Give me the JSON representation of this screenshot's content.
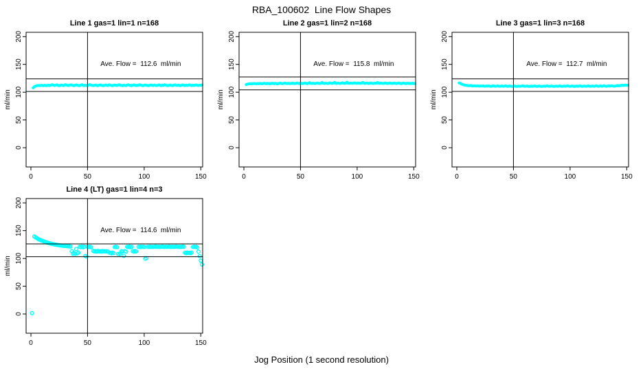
{
  "page": {
    "title": "RBA_100602  Line Flow Shapes",
    "xlabel": "Jog Position (1 second resolution)",
    "ylabel": "ml/min",
    "background": "#FFFFFF",
    "point_color": "#00FFFF",
    "line_color": "#000000"
  },
  "chart_data": [
    {
      "type": "scatter",
      "title": "Line 1 gas=1 lin=1 n=168",
      "annotation": "Ave. Flow =  112.6  ml/min",
      "ave_flow": 112.6,
      "n": 168,
      "marker": "filled",
      "point_color": "#00FFFF",
      "x_ticks": [
        0,
        50,
        100,
        150
      ],
      "y_ticks": [
        0,
        50,
        100,
        150,
        200
      ],
      "xlim": [
        -4.3,
        151.7
      ],
      "ylim": [
        -34.6,
        207.8
      ],
      "vline_x": 50,
      "hlines": [
        123.9,
        101.3
      ],
      "grid": false,
      "x_start": 2,
      "x_step": 1,
      "y": [
        107.8,
        109.6,
        110.8,
        111.4,
        111.9,
        112.1,
        111.7,
        112.3,
        112.0,
        111.6,
        112.4,
        112.1,
        111.8,
        112.6,
        112.2,
        111.9,
        113.1,
        113.6,
        112.4,
        112.0,
        112.7,
        113.2,
        112.1,
        111.8,
        112.5,
        112.9,
        112.2,
        111.7,
        113.4,
        113.0,
        112.3,
        111.9,
        112.6,
        113.2,
        112.8,
        112.1,
        111.7,
        112.4,
        113.0,
        112.5,
        112.0,
        111.8,
        112.7,
        113.3,
        112.2,
        111.9,
        112.5,
        112.1,
        111.8,
        112.9,
        113.5,
        112.6,
        112.2,
        111.9,
        112.4,
        112.8,
        112.3,
        111.8,
        112.6,
        113.1,
        112.4,
        112.0,
        111.7,
        112.5,
        112.9,
        112.2,
        111.9,
        113.2,
        112.6,
        112.1,
        111.8,
        112.4,
        112.9,
        112.3,
        112.0,
        112.7,
        113.3,
        112.5,
        112.1,
        111.8,
        112.6,
        112.2,
        111.9,
        112.8,
        113.2,
        112.4,
        112.0,
        111.7,
        112.5,
        113.0,
        112.3,
        111.9,
        112.6,
        112.2,
        113.4,
        112.8,
        112.1,
        111.8,
        112.5,
        112.9,
        112.3,
        112.0,
        111.7,
        112.6,
        113.1,
        112.4,
        112.0,
        112.8,
        112.2,
        111.9,
        112.5,
        113.0,
        112.3,
        111.8,
        112.7,
        112.1,
        113.3,
        112.6,
        112.0,
        111.8,
        112.4,
        112.9,
        112.2,
        111.9,
        112.6,
        113.1,
        112.3,
        112.0,
        112.7,
        112.2,
        111.8,
        112.5,
        113.0,
        112.4,
        111.9,
        112.6,
        112.1,
        112.8,
        113.2,
        112.3,
        111.9,
        112.5,
        112.0,
        112.7,
        113.1,
        112.4,
        112.0,
        112.6,
        112.2,
        112.9
      ]
    },
    {
      "type": "scatter",
      "title": "Line 2 gas=1 lin=2 n=168",
      "annotation": "Ave. Flow =  115.8  ml/min",
      "ave_flow": 115.8,
      "n": 168,
      "marker": "filled",
      "point_color": "#00FFFF",
      "x_ticks": [
        0,
        50,
        100,
        150
      ],
      "y_ticks": [
        0,
        50,
        100,
        150,
        200
      ],
      "xlim": [
        -4.3,
        151.7
      ],
      "ylim": [
        -34.6,
        207.8
      ],
      "vline_x": 50,
      "hlines": [
        127.4,
        104.2
      ],
      "grid": false,
      "x_start": 2,
      "x_step": 1,
      "y": [
        113.6,
        114.4,
        114.9,
        115.2,
        115.0,
        115.4,
        115.1,
        115.6,
        115.3,
        114.9,
        115.5,
        115.2,
        115.8,
        115.4,
        115.1,
        115.7,
        116.0,
        115.5,
        115.2,
        115.8,
        115.4,
        115.1,
        115.6,
        116.1,
        115.7,
        115.3,
        115.9,
        115.5,
        115.2,
        115.8,
        116.2,
        115.6,
        115.3,
        115.9,
        116.4,
        115.8,
        115.4,
        116.0,
        115.6,
        115.3,
        115.9,
        116.3,
        115.7,
        115.4,
        116.0,
        116.5,
        115.8,
        115.5,
        116.1,
        115.7,
        115.4,
        116.0,
        116.4,
        115.8,
        115.5,
        116.1,
        117.3,
        115.9,
        115.6,
        116.2,
        115.8,
        115.5,
        116.1,
        116.5,
        115.9,
        115.6,
        116.2,
        117.6,
        116.0,
        115.7,
        116.3,
        115.9,
        115.6,
        116.2,
        116.6,
        116.0,
        115.7,
        116.3,
        117.8,
        116.1,
        115.8,
        116.4,
        116.0,
        115.7,
        116.3,
        116.7,
        116.1,
        115.8,
        116.4,
        117.9,
        116.2,
        115.9,
        116.5,
        116.1,
        115.8,
        116.4,
        116.8,
        116.2,
        115.9,
        116.5,
        116.1,
        115.8,
        116.4,
        117.5,
        116.1,
        115.8,
        116.3,
        116.0,
        115.7,
        116.2,
        116.6,
        116.0,
        115.7,
        116.2,
        115.9,
        116.4,
        117.4,
        116.1,
        115.8,
        116.3,
        116.0,
        115.7,
        116.2,
        116.6,
        115.9,
        115.7,
        116.1,
        116.5,
        115.9,
        115.6,
        116.1,
        116.4,
        115.8,
        115.6,
        116.0,
        116.4,
        115.8,
        115.5,
        116.0,
        116.3,
        115.8,
        115.5,
        115.9,
        116.2,
        115.7,
        115.4,
        115.9,
        116.2,
        115.7,
        115.5
      ]
    },
    {
      "type": "scatter",
      "title": "Line 3 gas=1 lin=3 n=168",
      "annotation": "Ave. Flow =  112.7  ml/min",
      "ave_flow": 112.7,
      "n": 168,
      "marker": "filled",
      "point_color": "#00FFFF",
      "x_ticks": [
        0,
        50,
        100,
        150
      ],
      "y_ticks": [
        0,
        50,
        100,
        150,
        200
      ],
      "xlim": [
        -4.3,
        151.7
      ],
      "ylim": [
        -34.6,
        207.8
      ],
      "vline_x": 50,
      "hlines": [
        124.0,
        101.4
      ],
      "grid": false,
      "x_start": 2,
      "x_step": 1,
      "y": [
        116.6,
        116.0,
        114.8,
        113.9,
        113.2,
        112.7,
        112.3,
        112.0,
        111.8,
        111.6,
        111.9,
        111.5,
        111.2,
        111.6,
        111.3,
        111.0,
        111.4,
        111.1,
        110.8,
        111.2,
        110.9,
        111.3,
        111.0,
        110.7,
        111.1,
        110.8,
        111.2,
        110.9,
        110.6,
        111.0,
        111.4,
        110.8,
        110.5,
        110.9,
        111.3,
        110.7,
        110.4,
        110.9,
        111.2,
        110.6,
        110.9,
        111.3,
        110.7,
        110.4,
        110.8,
        111.1,
        110.6,
        110.3,
        110.8,
        111.2,
        110.6,
        110.3,
        110.7,
        111.0,
        110.5,
        110.9,
        111.3,
        110.7,
        110.4,
        110.8,
        111.1,
        110.6,
        110.3,
        110.7,
        111.0,
        110.5,
        110.8,
        111.2,
        110.6,
        110.4,
        110.8,
        111.1,
        110.5,
        110.3,
        110.7,
        111.0,
        110.6,
        110.9,
        111.3,
        110.7,
        110.4,
        110.8,
        111.1,
        110.6,
        110.3,
        110.7,
        111.0,
        110.5,
        110.9,
        111.2,
        110.6,
        110.4,
        110.8,
        111.1,
        110.5,
        110.9,
        111.3,
        110.7,
        110.4,
        110.8,
        111.2,
        110.6,
        110.3,
        110.8,
        111.1,
        110.5,
        110.9,
        111.2,
        110.7,
        110.4,
        110.8,
        111.1,
        110.6,
        111.0,
        111.3,
        110.7,
        110.5,
        110.9,
        111.2,
        110.6,
        111.0,
        111.4,
        110.8,
        110.5,
        110.9,
        111.3,
        110.7,
        111.1,
        111.5,
        110.9,
        110.6,
        111.0,
        111.4,
        110.8,
        111.2,
        111.6,
        111.0,
        110.7,
        111.1,
        111.5,
        111.9,
        111.3,
        111.7,
        112.1,
        112.5,
        112.0,
        112.4,
        112.8,
        112.3,
        112.6
      ]
    },
    {
      "type": "scatter",
      "title": "Line 4 (LT) gas=1 lin=4 n=3",
      "annotation": "Ave. Flow =  114.6  ml/min",
      "ave_flow": 114.6,
      "n": 3,
      "marker": "open",
      "point_color": "#00FFFF",
      "x_ticks": [
        0,
        50,
        100,
        150
      ],
      "y_ticks": [
        0,
        50,
        100,
        150,
        200
      ],
      "xlim": [
        -4.3,
        151.7
      ],
      "ylim": [
        -34.6,
        207.8
      ],
      "vline_x": 50,
      "hlines": [
        126.1,
        103.1
      ],
      "grid": false,
      "points": [
        [
          1,
          1.5
        ],
        [
          3,
          139.5
        ],
        [
          4,
          138.2
        ],
        [
          5,
          136.8
        ],
        [
          6,
          135.6
        ],
        [
          7,
          134.5
        ],
        [
          8,
          133.5
        ],
        [
          9,
          132.6
        ],
        [
          10,
          131.8
        ],
        [
          11,
          131.0
        ],
        [
          12,
          130.2
        ],
        [
          13,
          129.5
        ],
        [
          14,
          128.8
        ],
        [
          15,
          128.2
        ],
        [
          16,
          127.6
        ],
        [
          17,
          127.0
        ],
        [
          18,
          126.5
        ],
        [
          19,
          126.0
        ],
        [
          20,
          125.5
        ],
        [
          21,
          125.1
        ],
        [
          22,
          124.7
        ],
        [
          23,
          124.3
        ],
        [
          24,
          124.0
        ],
        [
          25,
          123.7
        ],
        [
          26,
          123.4
        ],
        [
          27,
          123.1
        ],
        [
          28,
          122.8
        ],
        [
          29,
          122.6
        ],
        [
          30,
          122.4
        ],
        [
          31,
          122.2
        ],
        [
          32,
          122.0
        ],
        [
          33,
          121.8
        ],
        [
          34,
          121.7
        ],
        [
          35,
          121.5
        ],
        [
          36,
          113.0
        ],
        [
          37,
          108.5
        ],
        [
          38,
          110.0
        ],
        [
          39,
          108.0
        ],
        [
          40,
          117.0
        ],
        [
          41,
          109.0
        ],
        [
          42,
          110.5
        ],
        [
          43,
          121.0
        ],
        [
          44,
          120.4
        ],
        [
          45,
          121.3
        ],
        [
          46,
          120.0
        ],
        [
          47,
          121.0
        ],
        [
          48,
          104.5
        ],
        [
          49,
          103.5
        ],
        [
          50,
          121.0
        ],
        [
          51,
          120.4
        ],
        [
          52,
          121.2
        ],
        [
          53,
          120.2
        ],
        [
          55,
          113.5
        ],
        [
          56,
          112.6
        ],
        [
          57,
          113.2
        ],
        [
          58,
          112.2
        ],
        [
          59,
          113.6
        ],
        [
          60,
          112.6
        ],
        [
          61,
          113.1
        ],
        [
          62,
          112.1
        ],
        [
          63,
          113.4
        ],
        [
          64,
          112.5
        ],
        [
          65,
          113.0
        ],
        [
          66,
          112.4
        ],
        [
          67,
          113.0
        ],
        [
          68,
          112.2
        ],
        [
          70,
          110.0
        ],
        [
          71,
          109.2
        ],
        [
          72,
          110.4
        ],
        [
          73,
          109.6
        ],
        [
          74,
          120.5
        ],
        [
          75,
          121.0
        ],
        [
          76,
          120.2
        ],
        [
          77,
          108.2
        ],
        [
          78,
          107.6
        ],
        [
          79,
          109.0
        ],
        [
          80,
          113.0
        ],
        [
          81,
          112.4
        ],
        [
          82,
          104.6
        ],
        [
          83,
          113.1
        ],
        [
          84,
          112.2
        ],
        [
          85,
          121.0
        ],
        [
          86,
          120.4
        ],
        [
          87,
          121.4
        ],
        [
          88,
          120.1
        ],
        [
          89,
          121.0
        ],
        [
          90,
          113.0
        ],
        [
          91,
          112.2
        ],
        [
          92,
          113.4
        ],
        [
          93,
          112.6
        ],
        [
          95,
          121.0
        ],
        [
          96,
          120.5
        ],
        [
          97,
          121.1
        ],
        [
          98,
          120.6
        ],
        [
          99,
          121.0
        ],
        [
          100,
          120.6
        ],
        [
          101,
          99.5
        ],
        [
          102,
          100.5
        ],
        [
          103,
          121.0
        ],
        [
          104,
          120.6
        ],
        [
          105,
          121.1
        ],
        [
          106,
          120.7
        ],
        [
          107,
          121.0
        ],
        [
          108,
          120.6
        ],
        [
          109,
          121.2
        ],
        [
          110,
          121.5
        ],
        [
          111,
          121.0
        ],
        [
          112,
          120.6
        ],
        [
          113,
          121.1
        ],
        [
          114,
          120.7
        ],
        [
          115,
          121.0
        ],
        [
          116,
          121.4
        ],
        [
          117,
          121.0
        ],
        [
          118,
          120.6
        ],
        [
          119,
          121.1
        ],
        [
          120,
          120.7
        ],
        [
          121,
          121.0
        ],
        [
          122,
          121.4
        ],
        [
          123,
          121.0
        ],
        [
          124,
          120.6
        ],
        [
          125,
          121.1
        ],
        [
          126,
          120.7
        ],
        [
          127,
          121.0
        ],
        [
          128,
          121.4
        ],
        [
          129,
          121.0
        ],
        [
          130,
          120.7
        ],
        [
          131,
          121.1
        ],
        [
          132,
          120.7
        ],
        [
          133,
          121.0
        ],
        [
          134,
          121.4
        ],
        [
          135,
          121.0
        ],
        [
          136,
          110.2
        ],
        [
          137,
          109.4
        ],
        [
          138,
          110.6
        ],
        [
          139,
          109.8
        ],
        [
          140,
          110.2
        ],
        [
          141,
          109.4
        ],
        [
          142,
          110.6
        ],
        [
          143,
          120.6
        ],
        [
          144,
          121.0
        ],
        [
          145,
          120.6
        ],
        [
          146,
          121.0
        ],
        [
          147,
          119.5
        ],
        [
          148,
          112.0
        ],
        [
          149,
          104.0
        ],
        [
          150,
          96.0
        ],
        [
          151,
          89.0
        ]
      ]
    }
  ]
}
